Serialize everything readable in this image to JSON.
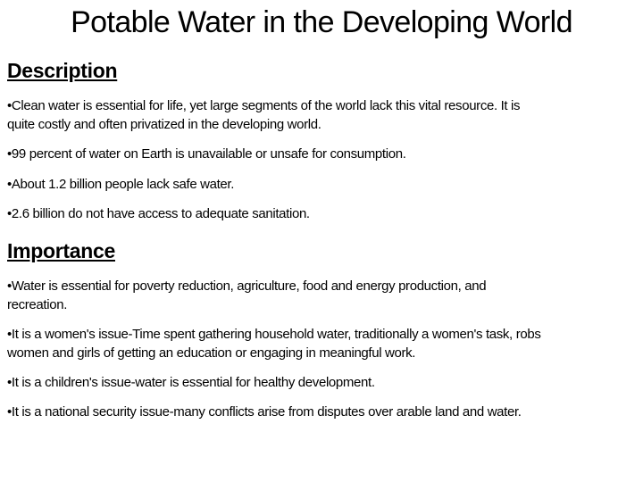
{
  "title": "Potable Water in the Developing World",
  "sections": [
    {
      "heading": "Description",
      "bullets": [
        {
          "lines": [
            "•Clean water is essential for life, yet large segments of the world lack this vital resource.  It is",
            "quite costly and often privatized in the developing world."
          ]
        },
        {
          "lines": [
            "•99 percent of water on Earth is unavailable or unsafe for consumption."
          ]
        },
        {
          "lines": [
            "•About 1.2 billion people lack safe water."
          ]
        },
        {
          "lines": [
            "•2.6 billion do not have access to adequate sanitation."
          ]
        }
      ]
    },
    {
      "heading": "Importance",
      "bullets": [
        {
          "lines": [
            "•Water is essential for poverty reduction, agriculture, food and energy production, and",
            "recreation."
          ]
        },
        {
          "lines": [
            "•It is a women's issue-Time spent gathering household water, traditionally a women's task, robs",
            "women and girls of getting an education or engaging in meaningful work."
          ]
        },
        {
          "lines": [
            "•It is a children's issue-water is essential for healthy development."
          ]
        },
        {
          "lines": [
            "•It is a national security issue-many conflicts arise from disputes over arable land and water."
          ]
        }
      ]
    }
  ]
}
